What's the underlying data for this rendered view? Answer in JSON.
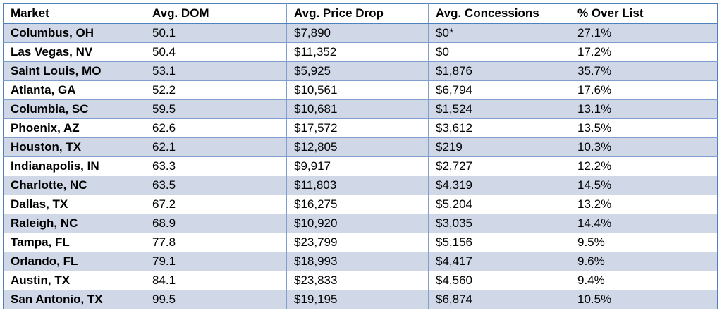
{
  "table": {
    "headers": [
      "Market",
      "Avg. DOM",
      "Avg. Price Drop",
      "Avg. Concessions",
      "% Over List"
    ],
    "rows": [
      [
        "Columbus, OH",
        "50.1",
        "$7,890",
        "$0*",
        "27.1%"
      ],
      [
        "Las Vegas, NV",
        "50.4",
        "$11,352",
        "$0",
        "17.2%"
      ],
      [
        "Saint Louis, MO",
        "53.1",
        "$5,925",
        "$1,876",
        "35.7%"
      ],
      [
        "Atlanta, GA",
        "52.2",
        "$10,561",
        "$6,794",
        "17.6%"
      ],
      [
        "Columbia, SC",
        "59.5",
        "$10,681",
        "$1,524",
        "13.1%"
      ],
      [
        "Phoenix, AZ",
        "62.6",
        "$17,572",
        "$3,612",
        "13.5%"
      ],
      [
        "Houston, TX",
        "62.1",
        "$12,805",
        "$219",
        "10.3%"
      ],
      [
        "Indianapolis, IN",
        "63.3",
        "$9,917",
        "$2,727",
        "12.2%"
      ],
      [
        "Charlotte, NC",
        "63.5",
        "$11,803",
        "$4,319",
        "14.5%"
      ],
      [
        "Dallas, TX",
        "67.2",
        "$16,275",
        "$5,204",
        "13.2%"
      ],
      [
        "Raleigh, NC",
        "68.9",
        "$10,920",
        "$3,035",
        "14.4%"
      ],
      [
        "Tampa, FL",
        "77.8",
        "$23,799",
        "$5,156",
        "9.5%"
      ],
      [
        "Orlando, FL",
        "79.1",
        "$18,993",
        "$4,417",
        "9.6%"
      ],
      [
        "Austin, TX",
        "84.1",
        "$23,833",
        "$4,560",
        "9.4%"
      ],
      [
        "San Antonio, TX",
        "99.5",
        "$19,195",
        "$6,874",
        "10.5%"
      ]
    ]
  },
  "colors": {
    "band": "#d0d8e8",
    "border": "#7f9fcf",
    "outer_border": "#4f81bd"
  }
}
